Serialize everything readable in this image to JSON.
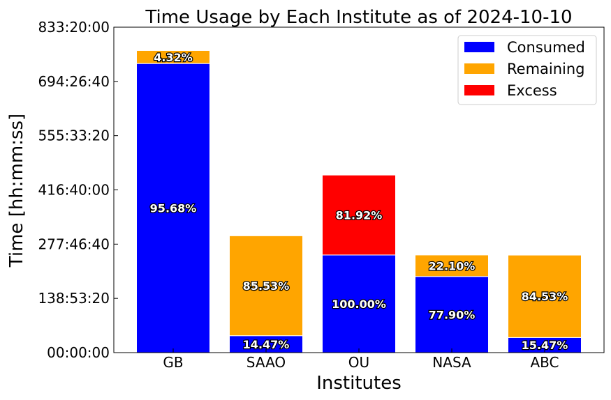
{
  "chart_data": {
    "type": "bar",
    "stacked": true,
    "title": "Time Usage by Each Institute as of 2024-10-10",
    "xlabel": "Institutes",
    "ylabel": "Time [hh:mm:ss]",
    "categories": [
      "GB",
      "SAAO",
      "OU",
      "NASA",
      "ABC"
    ],
    "y_unit": "seconds",
    "ylim": [
      0,
      3000000
    ],
    "yticks": [
      0,
      500000,
      1000000,
      1500000,
      2000000,
      2500000,
      3000000
    ],
    "ytick_labels": [
      "00:00:00",
      "138:53:20",
      "277:46:40",
      "416:40:00",
      "555:33:20",
      "694:26:40",
      "833:20:00"
    ],
    "series": [
      {
        "name": "Consumed",
        "color": "#0000ff",
        "values": [
          2665000,
          156000,
          900000,
          702000,
          139000
        ],
        "labels": [
          "95.68%",
          "14.47%",
          "100.00%",
          "77.90%",
          "15.47%"
        ]
      },
      {
        "name": "Remaining",
        "color": "#ffa500",
        "values": [
          120000,
          921000,
          0,
          198000,
          760000
        ],
        "labels": [
          "4.32%",
          "85.53%",
          "",
          "22.10%",
          "84.53%"
        ]
      },
      {
        "name": "Excess",
        "color": "#ff0000",
        "values": [
          0,
          0,
          737000,
          0,
          0
        ],
        "labels": [
          "",
          "",
          "81.92%",
          "",
          ""
        ]
      }
    ],
    "legend_position": "upper-right",
    "grid": false
  }
}
